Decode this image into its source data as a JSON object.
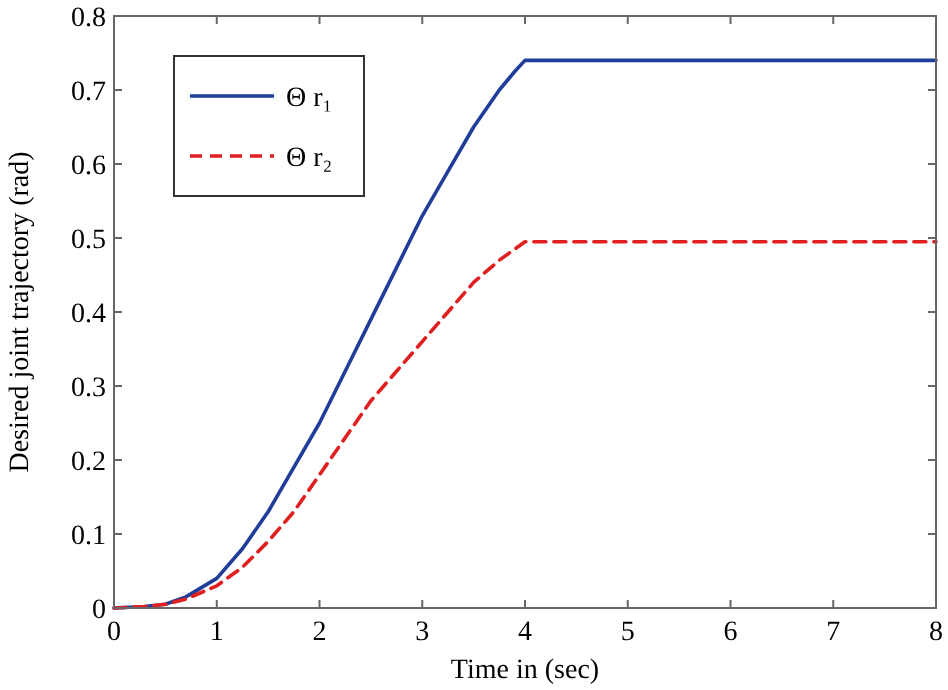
{
  "chart_data": {
    "type": "line",
    "xlabel": "Time in (sec)",
    "ylabel": "Desired joint trajectory (rad)",
    "xlim": [
      0,
      8
    ],
    "ylim": [
      0,
      0.8
    ],
    "xticks": [
      0,
      1,
      2,
      3,
      4,
      5,
      6,
      7,
      8
    ],
    "yticks": [
      0,
      0.1,
      0.2,
      0.3,
      0.4,
      0.5,
      0.6,
      0.7,
      0.8
    ],
    "grid": false,
    "legend": "top left",
    "series": [
      {
        "name": "Θ r₁",
        "color": "#1f3d99",
        "line_style": "solid",
        "x": [
          0,
          0.3,
          0.5,
          0.7,
          1,
          1.25,
          1.5,
          1.75,
          2,
          2.25,
          2.5,
          2.75,
          3,
          3.25,
          3.5,
          3.75,
          3.9,
          4,
          8
        ],
        "values": [
          0,
          0.002,
          0.005,
          0.015,
          0.04,
          0.08,
          0.13,
          0.19,
          0.25,
          0.32,
          0.39,
          0.46,
          0.53,
          0.59,
          0.65,
          0.7,
          0.725,
          0.74,
          0.74
        ]
      },
      {
        "name": "Θ r₂",
        "color": "#e02020",
        "line_style": "dashed",
        "x": [
          0,
          0.3,
          0.5,
          0.7,
          1,
          1.25,
          1.5,
          1.75,
          2,
          2.25,
          2.5,
          2.75,
          3,
          3.25,
          3.5,
          3.75,
          4,
          8
        ],
        "values": [
          0,
          0.002,
          0.005,
          0.012,
          0.03,
          0.055,
          0.09,
          0.13,
          0.18,
          0.23,
          0.28,
          0.32,
          0.36,
          0.4,
          0.44,
          0.47,
          0.495,
          0.495
        ]
      }
    ]
  }
}
